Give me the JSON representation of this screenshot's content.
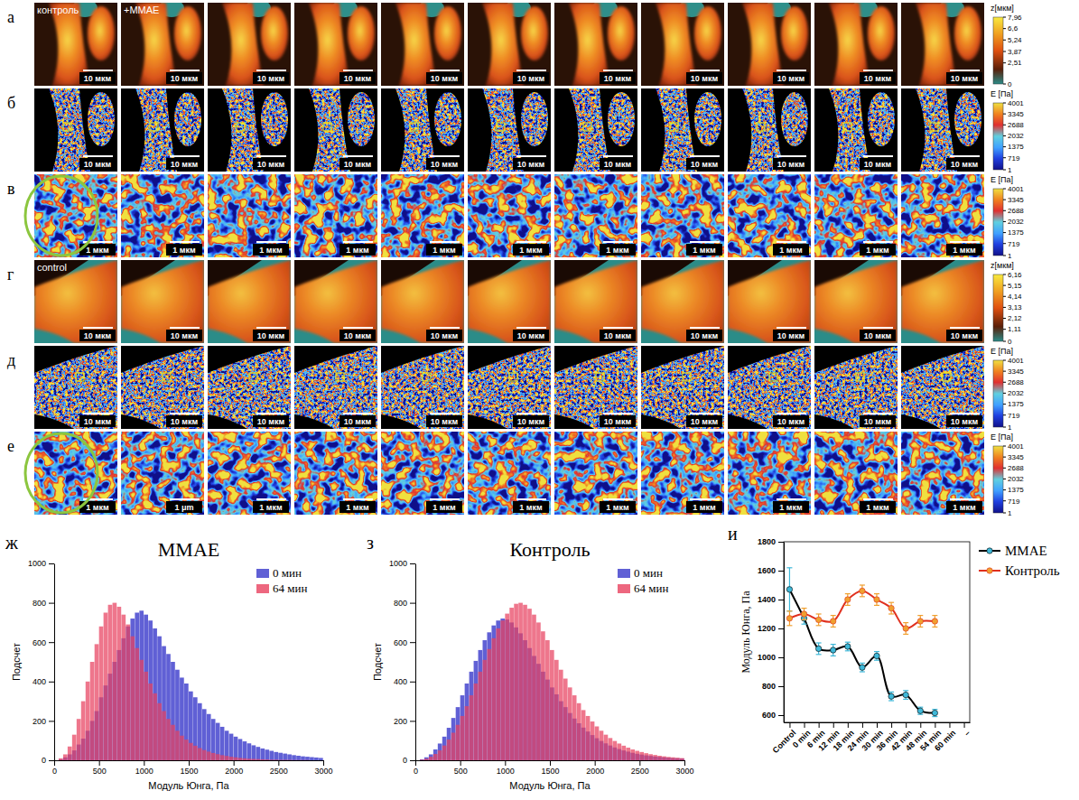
{
  "image_rows": [
    {
      "letter": "а",
      "type": "height_map",
      "panel_labels": [
        "контроль",
        "+MMAE"
      ],
      "scale_bars": [
        "10 мкм",
        "10 мкм",
        "10 мкм",
        "10 мкм",
        "10 мкм",
        "10 мкм",
        "10 мкм",
        "10 мкм",
        "10 мкм",
        "10 мкм",
        "10 мкм"
      ],
      "colorbar": {
        "title": "z[мкм]",
        "range": [
          0,
          7.96
        ],
        "ticks": [
          0,
          {
            "value": 2.51,
            "label": "2,51"
          },
          {
            "value": 3.87,
            "label": "3,87"
          },
          {
            "value": 5.24,
            "label": "5,24"
          },
          {
            "value": 6.6,
            "label": "6,6"
          },
          {
            "value": 7.96,
            "label": "7,96"
          }
        ]
      }
    },
    {
      "letter": "б",
      "type": "modulus_map",
      "scale_bars": [
        "10 мкм",
        "10 мкм",
        "10 мкм",
        "10 мкм",
        "10 мкм",
        "10 мкм",
        "10 мкм",
        "10 мкм",
        "10 мкм",
        "10 мкм",
        "10 мкм"
      ],
      "colorbar": {
        "title": "E [Па]",
        "range": [
          1,
          4001
        ],
        "ticks": [
          1,
          719,
          1375,
          2032,
          2688,
          3345,
          4001
        ]
      }
    },
    {
      "letter": "в",
      "type": "modulus_zoom",
      "scale_bars": [
        "1 мкм",
        "1 мкм",
        "1 мкм",
        "1 мкм",
        "1 мкм",
        "1 мкм",
        "1 мкм",
        "1 мкм",
        "1 мкм",
        "1 мкм",
        "1 мкм"
      ],
      "colorbar": {
        "title": "E [Па]",
        "range": [
          1,
          4001
        ],
        "ticks": [
          1,
          719,
          1375,
          2032,
          2688,
          3345,
          4001
        ]
      }
    },
    {
      "letter": "г",
      "type": "height_map",
      "panel_labels": [
        "control"
      ],
      "scale_bars": [
        "10 мкм",
        "10 мкм",
        "10 мкм",
        "10 мкм",
        "10 мкм",
        "10 мкм",
        "10 мкм",
        "10 мкм",
        "10 мкм",
        "10 мкм",
        "10 мкм"
      ],
      "colorbar": {
        "title": "z[мкм]",
        "range": [
          0,
          6.16
        ],
        "ticks": [
          0,
          {
            "value": 1.11,
            "label": "1,11"
          },
          {
            "value": 2.12,
            "label": "2,12"
          },
          {
            "value": 3.13,
            "label": "3,13"
          },
          {
            "value": 4.14,
            "label": "4,14"
          },
          {
            "value": 5.15,
            "label": "5,15"
          },
          {
            "value": 6.16,
            "label": "6,16"
          }
        ]
      }
    },
    {
      "letter": "д",
      "type": "modulus_map",
      "scale_bars": [
        "10 мкм",
        "10 мкм",
        "10 мкм",
        "10 мкм",
        "10 мкм",
        "10 мкм",
        "10 мкм",
        "10 мкм",
        "10 мкм",
        "10 мкм",
        "10 мкм"
      ],
      "colorbar": {
        "title": "E [Па]",
        "range": [
          1,
          4001
        ],
        "ticks": [
          1,
          719,
          1375,
          2032,
          2688,
          3345,
          4001
        ]
      }
    },
    {
      "letter": "е",
      "type": "modulus_zoom",
      "scale_bars": [
        "1 мкм",
        "1 μm",
        "1 мкм",
        "1 мкм",
        "1 мкм",
        "1 мкм",
        "1 мкм",
        "1 мкм",
        "1 мкм",
        "1 мкм",
        "1 мкм"
      ],
      "colorbar": {
        "title": "E [Па]",
        "range": [
          1,
          4001
        ],
        "ticks": [
          1,
          719,
          1375,
          2032,
          2688,
          3345,
          4001
        ]
      }
    }
  ],
  "chart_data": [
    {
      "type": "histogram",
      "letter": "ж",
      "title": "MMAE",
      "xlabel": "Модуль Юнга, Па",
      "ylabel": "Подсчет",
      "bins": [
        0,
        50,
        100,
        150,
        200,
        250,
        300,
        350,
        400,
        450,
        500,
        550,
        600,
        650,
        700,
        750,
        800,
        850,
        900,
        950,
        1000,
        1050,
        1100,
        1150,
        1200,
        1250,
        1300,
        1350,
        1400,
        1450,
        1500,
        1550,
        1600,
        1650,
        1700,
        1750,
        1800,
        1850,
        1900,
        1950,
        2000,
        2050,
        2100,
        2150,
        2200,
        2250,
        2300,
        2350,
        2400,
        2450,
        2500,
        2550,
        2600,
        2650,
        2700,
        2750,
        2800,
        2850,
        2900,
        2950,
        3000
      ],
      "series": [
        {
          "name": "0 мин",
          "color": "#4f4fd0",
          "values": [
            0,
            5,
            15,
            30,
            50,
            80,
            110,
            150,
            200,
            250,
            320,
            380,
            440,
            500,
            560,
            620,
            680,
            720,
            750,
            760,
            740,
            710,
            670,
            630,
            580,
            540,
            500,
            460,
            420,
            390,
            350,
            320,
            290,
            260,
            235,
            210,
            190,
            170,
            150,
            135,
            120,
            108,
            96,
            86,
            76,
            68,
            60,
            54,
            48,
            42,
            38,
            34,
            30,
            26,
            23,
            20,
            18,
            16,
            14,
            12
          ]
        },
        {
          "name": "64 мин",
          "color": "#e8415f",
          "values": [
            0,
            10,
            30,
            70,
            130,
            210,
            300,
            400,
            500,
            590,
            680,
            750,
            790,
            800,
            780,
            740,
            690,
            630,
            570,
            510,
            450,
            390,
            340,
            290,
            250,
            210,
            180,
            150,
            125,
            105,
            88,
            74,
            62,
            52,
            44,
            37,
            31,
            26,
            22,
            18,
            15,
            12,
            10,
            8,
            7,
            6,
            5,
            4,
            3,
            3,
            2,
            2,
            2,
            1,
            1,
            1,
            1,
            0,
            0,
            0
          ]
        }
      ],
      "xlim": [
        0,
        3000
      ],
      "xticks": [
        0,
        500,
        1000,
        1500,
        2000,
        2500,
        3000
      ],
      "ylim": [
        0,
        1000
      ],
      "yticks": [
        0,
        200,
        400,
        600,
        800,
        1000
      ],
      "legend": "top-right",
      "grid": false
    },
    {
      "type": "histogram",
      "letter": "з",
      "title": "Контроль",
      "xlabel": "Модуль Юнга, Па",
      "ylabel": "Подсчет",
      "bins": [
        0,
        50,
        100,
        150,
        200,
        250,
        300,
        350,
        400,
        450,
        500,
        550,
        600,
        650,
        700,
        750,
        800,
        850,
        900,
        950,
        1000,
        1050,
        1100,
        1150,
        1200,
        1250,
        1300,
        1350,
        1400,
        1450,
        1500,
        1550,
        1600,
        1650,
        1700,
        1750,
        1800,
        1850,
        1900,
        1950,
        2000,
        2050,
        2100,
        2150,
        2200,
        2250,
        2300,
        2350,
        2400,
        2450,
        2500,
        2550,
        2600,
        2650,
        2700,
        2750,
        2800,
        2850,
        2900,
        2950,
        3000
      ],
      "series": [
        {
          "name": "0 мин",
          "color": "#4f4fd0",
          "values": [
            0,
            5,
            15,
            30,
            55,
            85,
            120,
            165,
            215,
            270,
            330,
            390,
            450,
            505,
            560,
            610,
            650,
            685,
            710,
            720,
            715,
            700,
            675,
            645,
            610,
            570,
            530,
            490,
            450,
            410,
            370,
            335,
            300,
            270,
            240,
            212,
            188,
            166,
            146,
            128,
            112,
            98,
            86,
            75,
            65,
            57,
            50,
            44,
            38,
            33,
            29,
            25,
            22,
            19,
            17,
            15,
            13,
            11,
            10,
            9
          ]
        },
        {
          "name": "64 мин",
          "color": "#e8415f",
          "values": [
            0,
            3,
            8,
            18,
            32,
            50,
            75,
            105,
            140,
            180,
            225,
            275,
            330,
            390,
            450,
            510,
            565,
            620,
            670,
            710,
            745,
            775,
            795,
            800,
            790,
            770,
            740,
            700,
            655,
            610,
            560,
            510,
            460,
            415,
            370,
            330,
            290,
            255,
            225,
            197,
            172,
            150,
            130,
            113,
            98,
            85,
            74,
            64,
            55,
            48,
            42,
            36,
            31,
            27,
            23,
            20,
            17,
            15,
            13,
            11
          ]
        }
      ],
      "xlim": [
        0,
        3000
      ],
      "xticks": [
        0,
        500,
        1000,
        1500,
        2000,
        2500,
        3000
      ],
      "ylim": [
        0,
        1000
      ],
      "yticks": [
        0,
        200,
        400,
        600,
        800,
        1000
      ],
      "legend": "top-right",
      "grid": false
    },
    {
      "type": "line",
      "letter": "и",
      "ylabel": "Модуль Юнга, Па",
      "categories": [
        "Control",
        "0 min",
        "6 min",
        "12 min",
        "18 min",
        "24 min",
        "30 min",
        "36 min",
        "42 min",
        "48 min",
        "54 min",
        "60 min",
        "–"
      ],
      "series": [
        {
          "name": "MMAE",
          "color": "#000000",
          "marker": "circle",
          "line_style": "solid",
          "values": [
            1470,
            1270,
            1060,
            1050,
            1075,
            930,
            1010,
            730,
            740,
            630,
            615,
            null,
            null
          ],
          "errors": [
            150,
            40,
            40,
            40,
            30,
            30,
            30,
            30,
            30,
            25,
            25,
            null,
            null
          ]
        },
        {
          "name": "Контроль",
          "color": "#e0301e",
          "marker": "circle",
          "line_style": "solid",
          "values": [
            1270,
            1300,
            1260,
            1250,
            1400,
            1460,
            1400,
            1340,
            1200,
            1250,
            1250,
            null,
            null
          ],
          "errors": [
            50,
            40,
            40,
            40,
            40,
            40,
            40,
            40,
            40,
            40,
            40,
            null,
            null
          ]
        }
      ],
      "ylim": [
        550,
        1800
      ],
      "yticks": [
        600,
        800,
        1000,
        1200,
        1400,
        1600,
        1800
      ],
      "legend": "right",
      "grid": false
    }
  ]
}
